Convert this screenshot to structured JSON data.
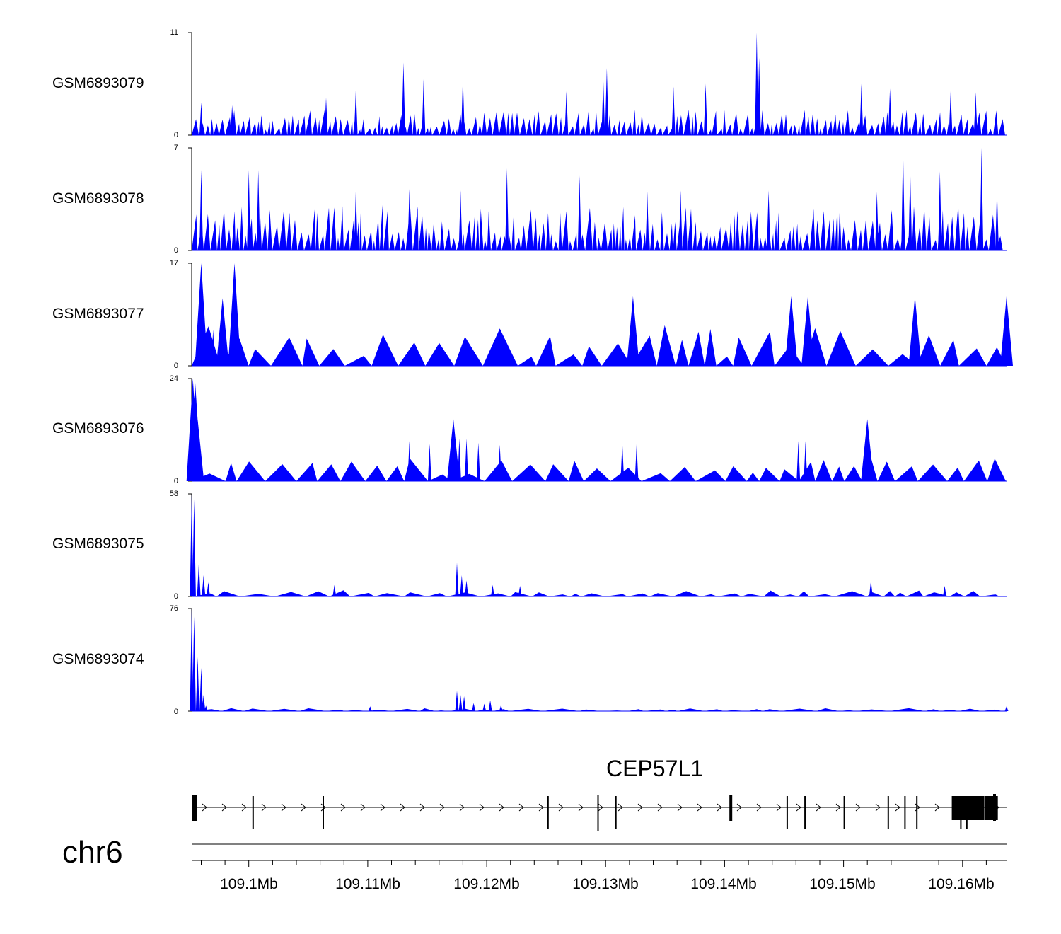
{
  "chart_data": {
    "type": "area",
    "title": "",
    "chromosome": "chr6",
    "xrange_mb": [
      109.0952,
      109.1637
    ],
    "color": "#0000ff",
    "gene": {
      "name": "CEP57L1",
      "strand": "+",
      "exon_starts_mb": [
        109.0952,
        109.1003,
        109.1062,
        109.1251,
        109.1293,
        109.1308,
        109.1404,
        109.1452,
        109.1467,
        109.15,
        109.1537,
        109.1551,
        109.1561,
        109.1591,
        109.1598,
        109.1603,
        109.1619
      ]
    },
    "axis": {
      "ticks": [
        "109.1Mb",
        "109.11Mb",
        "109.12Mb",
        "109.13Mb",
        "109.14Mb",
        "109.15Mb",
        "109.16Mb"
      ],
      "tick_values_mb": [
        109.1,
        109.11,
        109.12,
        109.13,
        109.14,
        109.15,
        109.16
      ]
    },
    "series": [
      {
        "name": "GSM6893079",
        "ymin": "0",
        "ymax": "11",
        "peaks": [
          [
            109.096,
            3.5
          ],
          [
            109.0986,
            3.2
          ],
          [
            109.1065,
            4.0
          ],
          [
            109.109,
            5.0
          ],
          [
            109.113,
            7.8
          ],
          [
            109.1147,
            6.0
          ],
          [
            109.118,
            6.2
          ],
          [
            109.1267,
            4.7
          ],
          [
            109.1298,
            6.0
          ],
          [
            109.1301,
            7.2
          ],
          [
            109.1357,
            5.2
          ],
          [
            109.1384,
            5.5
          ],
          [
            109.1427,
            11.0
          ],
          [
            109.1429,
            8.3
          ],
          [
            109.1515,
            5.5
          ],
          [
            109.1539,
            5.0
          ],
          [
            109.159,
            4.7
          ],
          [
            109.1611,
            4.6
          ]
        ],
        "base": 2.2
      },
      {
        "name": "GSM6893078",
        "ymin": "0",
        "ymax": "7",
        "peaks": [
          [
            109.096,
            5.5
          ],
          [
            109.1,
            5.5
          ],
          [
            109.1008,
            5.5
          ],
          [
            109.109,
            4.2
          ],
          [
            109.1135,
            4.2
          ],
          [
            109.1178,
            4.1
          ],
          [
            109.1217,
            5.6
          ],
          [
            109.1278,
            5.1
          ],
          [
            109.1335,
            4.0
          ],
          [
            109.1363,
            4.1
          ],
          [
            109.1437,
            4.1
          ],
          [
            109.1528,
            4.0
          ],
          [
            109.155,
            7.0
          ],
          [
            109.1556,
            5.5
          ],
          [
            109.1581,
            5.4
          ],
          [
            109.1616,
            7.0
          ],
          [
            109.1629,
            4.2
          ]
        ],
        "base": 2.5
      },
      {
        "name": "GSM6893077",
        "ymin": "0",
        "ymax": "17",
        "peaks": [
          [
            109.096,
            17.0
          ],
          [
            109.097,
            6.0
          ],
          [
            109.0975,
            6.3
          ],
          [
            109.0978,
            11.2
          ],
          [
            109.0988,
            17.0
          ],
          [
            109.1323,
            11.5
          ],
          [
            109.1456,
            11.5
          ],
          [
            109.147,
            11.5
          ],
          [
            109.156,
            11.5
          ],
          [
            109.1637,
            11.5
          ]
        ],
        "base": 5.5
      },
      {
        "name": "GSM6893076",
        "ymin": "0",
        "ymax": "24",
        "peaks": [
          [
            109.0953,
            24.0
          ],
          [
            109.0955,
            23.0
          ],
          [
            109.0957,
            14.5
          ],
          [
            109.1135,
            9.4
          ],
          [
            109.1152,
            8.7
          ],
          [
            109.1172,
            14.5
          ],
          [
            109.1177,
            10.0
          ],
          [
            109.1183,
            10.0
          ],
          [
            109.1193,
            9.0
          ],
          [
            109.1211,
            8.5
          ],
          [
            109.1314,
            9.0
          ],
          [
            109.1326,
            8.6
          ],
          [
            109.1462,
            9.4
          ],
          [
            109.1468,
            9.4
          ],
          [
            109.152,
            14.5
          ]
        ],
        "base": 4.5
      },
      {
        "name": "GSM6893075",
        "ymin": "0",
        "ymax": "58",
        "peaks": [
          [
            109.0952,
            58.0
          ],
          [
            109.0954,
            55.0
          ],
          [
            109.0958,
            19.0
          ],
          [
            109.0962,
            12.0
          ],
          [
            109.0966,
            8.0
          ],
          [
            109.1072,
            6.5
          ],
          [
            109.1175,
            19.0
          ],
          [
            109.1179,
            12.0
          ],
          [
            109.1183,
            9.0
          ],
          [
            109.1205,
            6.5
          ],
          [
            109.1228,
            6.0
          ],
          [
            109.1523,
            9.0
          ],
          [
            109.1585,
            6.0
          ]
        ],
        "base": 2.8
      },
      {
        "name": "GSM6893074",
        "ymin": "0",
        "ymax": "76",
        "peaks": [
          [
            109.0952,
            76.0
          ],
          [
            109.0954,
            70.0
          ],
          [
            109.0957,
            40.0
          ],
          [
            109.096,
            32.0
          ],
          [
            109.0962,
            12.0
          ],
          [
            109.0964,
            4.0
          ],
          [
            109.1102,
            3.5
          ],
          [
            109.1175,
            15.0
          ],
          [
            109.1178,
            12.0
          ],
          [
            109.1181,
            11.0
          ],
          [
            109.1189,
            6.0
          ],
          [
            109.1198,
            5.5
          ],
          [
            109.1203,
            8.0
          ],
          [
            109.1212,
            4.5
          ],
          [
            109.1637,
            3.5
          ]
        ],
        "base": 1.8
      }
    ]
  }
}
